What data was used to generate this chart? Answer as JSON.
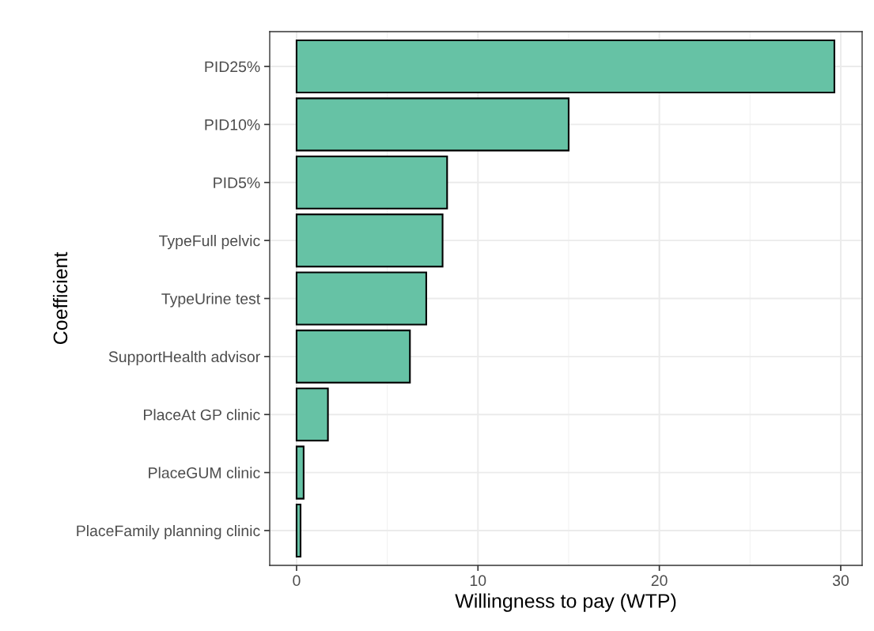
{
  "chart_data": {
    "type": "bar",
    "orientation": "horizontal",
    "xlabel": "Willingness to pay (WTP)",
    "ylabel": "Coefficient",
    "categories": [
      "PID25%",
      "PID10%",
      "PID5%",
      "TypeFull pelvic",
      "TypeUrine test",
      "SupportHealth advisor",
      "PlaceAt GP clinic",
      "PlaceGUM clinic",
      "PlaceFamily planning clinic"
    ],
    "values": [
      29.65,
      15.0,
      8.3,
      8.05,
      7.15,
      6.25,
      1.73,
      0.39,
      0.22
    ],
    "color": "#66c2a5",
    "xlim": [
      -1.48,
      31.18
    ],
    "xticks": [
      0,
      {
        "value": 5,
        "label": null
      },
      10,
      {
        "value": 15,
        "label": null
      },
      20,
      {
        "value": 25,
        "label": null
      },
      30
    ],
    "grid": true,
    "legend": false
  }
}
